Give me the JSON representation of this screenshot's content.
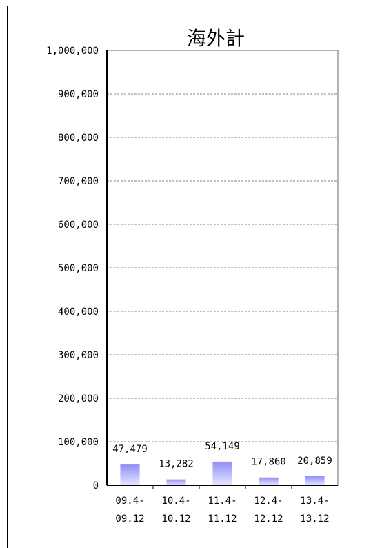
{
  "chart_data": {
    "type": "bar",
    "title": "海外計",
    "categories": [
      {
        "line1": "09.4-",
        "line2": "09.12"
      },
      {
        "line1": "10.4-",
        "line2": "10.12"
      },
      {
        "line1": "11.4-",
        "line2": "11.12"
      },
      {
        "line1": "12.4-",
        "line2": "12.12"
      },
      {
        "line1": "13.4-",
        "line2": "13.12"
      }
    ],
    "values": [
      47479,
      13282,
      54149,
      17860,
      20859
    ],
    "value_labels": [
      "47,479",
      "13,282",
      "54,149",
      "17,860",
      "20,859"
    ],
    "ylim": [
      0,
      1000000
    ],
    "yticks": [
      0,
      100000,
      200000,
      300000,
      400000,
      500000,
      600000,
      700000,
      800000,
      900000,
      1000000
    ],
    "ytick_labels": [
      "0",
      "100,000",
      "200,000",
      "300,000",
      "400,000",
      "500,000",
      "600,000",
      "700,000",
      "800,000",
      "900,000",
      "1,000,000"
    ],
    "grid": true,
    "bar_color_top": "#8e8ef5",
    "bar_color_bottom": "#e6e6ff"
  }
}
